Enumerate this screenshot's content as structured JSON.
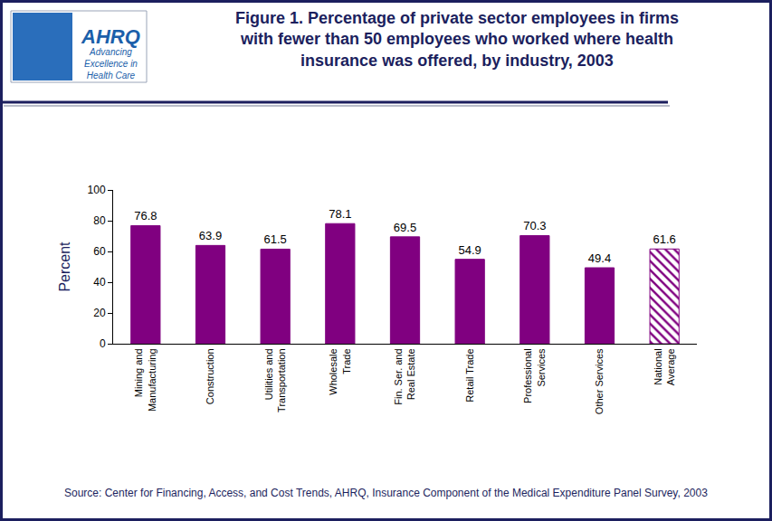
{
  "chart_data": {
    "type": "bar",
    "title": "Figure 1. Percentage of private sector employees in firms with fewer than 50 employees who worked where health insurance was offered, by industry, 2003",
    "y_label": "Percent",
    "categories": [
      "Mining and Manufacturing",
      "Construction",
      "Utilities and Transportation",
      "Wholesale Trade",
      "Fin. Ser. and Real Estate",
      "Retail Trade",
      "Professional Services",
      "Other Services",
      "National Average"
    ],
    "values": [
      76.8,
      63.9,
      61.5,
      78.1,
      69.5,
      54.9,
      70.3,
      49.4,
      61.6
    ],
    "color": "#800080",
    "ylim": [
      0,
      100
    ],
    "yticks": [
      0,
      20,
      40,
      60,
      80,
      100
    ],
    "grid": false,
    "data_labels": true,
    "annotations": [
      "AHRQ",
      "Advancing Excellence in Health Care",
      "Source: Center for Financing, Access, and Cost Trends, AHRQ, Insurance Component of the Medical Expenditure Panel Survey, 2003"
    ]
  }
}
